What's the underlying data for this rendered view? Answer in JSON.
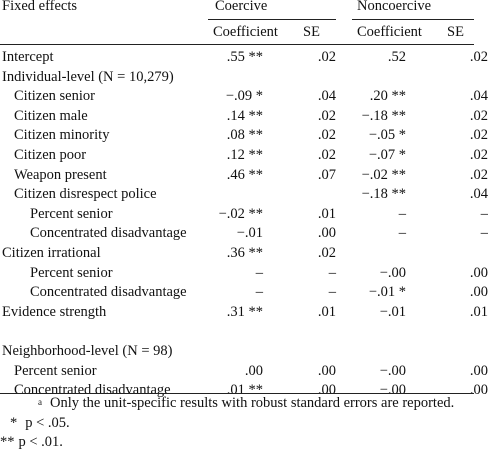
{
  "header": {
    "stub": "Fixed effects",
    "group1": "Coercive",
    "group2": "Noncoercive",
    "col_coef": "Coefficient",
    "col_se": "SE"
  },
  "rows": [
    {
      "label": "Intercept",
      "indent": 0,
      "c1": ".55 **",
      "c2": ".02",
      "c3": ".52",
      "c4": ".02"
    },
    {
      "label": "Individual-level (N = 10,279)",
      "indent": 0,
      "c1": "",
      "c2": "",
      "c3": "",
      "c4": ""
    },
    {
      "label": "Citizen senior",
      "indent": 1,
      "c1": "−.09 *",
      "c2": ".04",
      "c3": ".20 **",
      "c4": ".04"
    },
    {
      "label": "Citizen male",
      "indent": 1,
      "c1": ".14 **",
      "c2": ".02",
      "c3": "−.18 **",
      "c4": ".02"
    },
    {
      "label": "Citizen minority",
      "indent": 1,
      "c1": ".08 **",
      "c2": ".02",
      "c3": "−.05 *",
      "c4": ".02"
    },
    {
      "label": "Citizen poor",
      "indent": 1,
      "c1": ".12 **",
      "c2": ".02",
      "c3": "−.07 *",
      "c4": ".02"
    },
    {
      "label": "Weapon present",
      "indent": 1,
      "c1": ".46 **",
      "c2": ".07",
      "c3": "−.02 **",
      "c4": ".02"
    },
    {
      "label": "Citizen disrespect police",
      "indent": 1,
      "c1": "",
      "c2": "",
      "c3": "−.18 **",
      "c4": ".04"
    },
    {
      "label": "Percent senior",
      "indent": 2,
      "c1": "−.02 **",
      "c2": ".01",
      "c3": "–",
      "c4": "–"
    },
    {
      "label": "Concentrated disadvantage",
      "indent": 2,
      "c1": "−.01",
      "c2": ".00",
      "c3": "–",
      "c4": "–"
    },
    {
      "label": "Citizen irrational",
      "indent": 0,
      "c1": ".36 **",
      "c2": ".02",
      "c3": "",
      "c4": ""
    },
    {
      "label": "Percent senior",
      "indent": 2,
      "c1": "–",
      "c2": "–",
      "c3": "−.00",
      "c4": ".00"
    },
    {
      "label": "Concentrated disadvantage",
      "indent": 2,
      "c1": "–",
      "c2": "–",
      "c3": "−.01 *",
      "c4": ".00"
    },
    {
      "label": "Evidence strength",
      "indent": 0,
      "c1": ".31 **",
      "c2": ".01",
      "c3": "−.01",
      "c4": ".01"
    },
    {
      "label": "",
      "indent": 0,
      "c1": "",
      "c2": "",
      "c3": "",
      "c4": ""
    },
    {
      "label": "Neighborhood-level (N = 98)",
      "indent": 0,
      "c1": "",
      "c2": "",
      "c3": "",
      "c4": ""
    },
    {
      "label": "Percent senior",
      "indent": 1,
      "c1": ".00",
      "c2": ".00",
      "c3": "−.00",
      "c4": ".00"
    },
    {
      "label": "Concentrated disadvantage",
      "indent": 1,
      "c1": ".01 **",
      "c2": ".00",
      "c3": "−.00",
      "c4": ".00"
    }
  ],
  "notes": {
    "a_mark": "a",
    "a_text": "Only the unit-specific results with robust standard errors are reported.",
    "p05_mark": "*",
    "p05_text": "p < .05.",
    "p01_mark": "**",
    "p01_text": "p < .01."
  }
}
